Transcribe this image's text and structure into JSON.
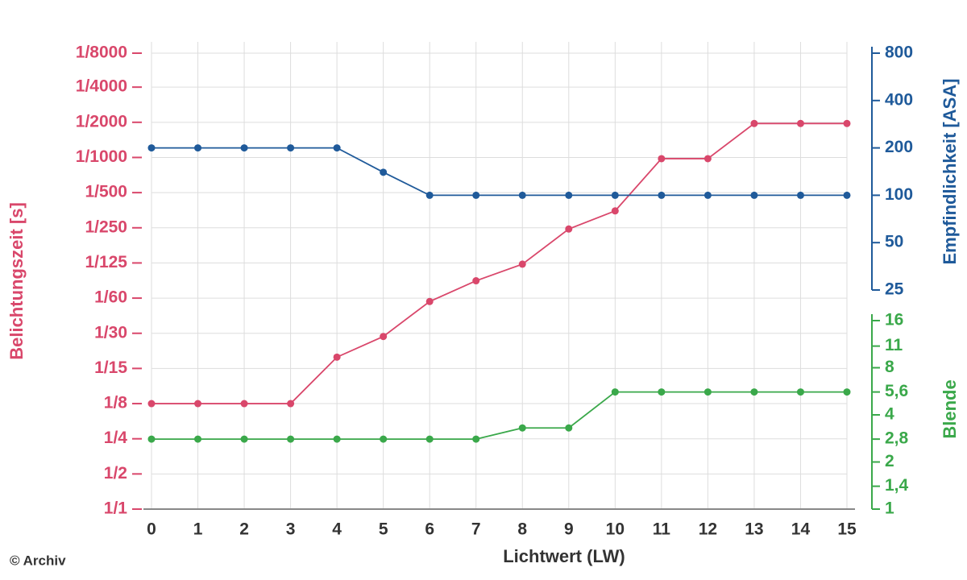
{
  "chart_data": {
    "type": "line",
    "x_label": "Lichtwert (LW)",
    "y_label": "Belichtungszeit [s]",
    "y2_label": "Empfindlichkeit [ASA]",
    "y3_label": "Blende",
    "credit": "© Archiv",
    "x": [
      0,
      1,
      2,
      3,
      4,
      5,
      6,
      7,
      8,
      9,
      10,
      11,
      12,
      13,
      14,
      15
    ],
    "xlim": [
      0,
      15
    ],
    "xticks": [
      0,
      1,
      2,
      3,
      4,
      5,
      6,
      7,
      8,
      9,
      10,
      11,
      12,
      13,
      14,
      15
    ],
    "log_y": true,
    "ylim": [
      1,
      0.000125
    ],
    "yticks": [
      {
        "value": 1,
        "label": "1/1"
      },
      {
        "value": 0.5,
        "label": "1/2"
      },
      {
        "value": 0.25,
        "label": "1/4"
      },
      {
        "value": 0.125,
        "label": "1/8"
      },
      {
        "value": 0.0625,
        "label": "1/15"
      },
      {
        "value": 0.03125,
        "label": "1/30"
      },
      {
        "value": 0.015625,
        "label": "1/60"
      },
      {
        "value": 0.0078125,
        "label": "1/125"
      },
      {
        "value": 0.00390625,
        "label": "1/250"
      },
      {
        "value": 0.001953125,
        "label": "1/500"
      },
      {
        "value": 0.0009765625,
        "label": "1/1000"
      },
      {
        "value": 0.00048828125,
        "label": "1/2000"
      },
      {
        "value": 0.000244140625,
        "label": "1/4000"
      },
      {
        "value": 0.000125,
        "label": "1/8000"
      }
    ],
    "y2lim": [
      25,
      800
    ],
    "y2ticks": [
      25,
      50,
      100,
      200,
      400,
      800
    ],
    "y3lim": [
      1,
      16
    ],
    "y3ticks": [
      1,
      {
        "value": 1.4,
        "label": "1,4"
      },
      2,
      {
        "value": 2.8,
        "label": "2,8"
      },
      4,
      {
        "value": 5.6,
        "label": "5,6"
      },
      8,
      11,
      16
    ],
    "grid": true,
    "series": [
      {
        "name": "Belichtungszeit",
        "color": "#d9476b",
        "axis": "y",
        "values": [
          0.125,
          0.125,
          0.125,
          0.125,
          0.05,
          0.0333,
          0.0167,
          0.0111,
          0.008,
          0.004,
          0.0028,
          0.001,
          0.001,
          0.0005,
          0.0005,
          0.0005
        ]
      },
      {
        "name": "Empfindlichkeit",
        "color": "#1f5a9a",
        "axis": "y2",
        "values": [
          200,
          200,
          200,
          200,
          200,
          140,
          100,
          100,
          100,
          100,
          100,
          100,
          100,
          100,
          100,
          100
        ]
      },
      {
        "name": "Blende",
        "color": "#3aa84a",
        "axis": "y3",
        "values": [
          2.8,
          2.8,
          2.8,
          2.8,
          2.8,
          2.8,
          2.8,
          2.8,
          3.3,
          3.3,
          5.6,
          5.6,
          5.6,
          5.6,
          5.6,
          5.6
        ]
      }
    ]
  }
}
